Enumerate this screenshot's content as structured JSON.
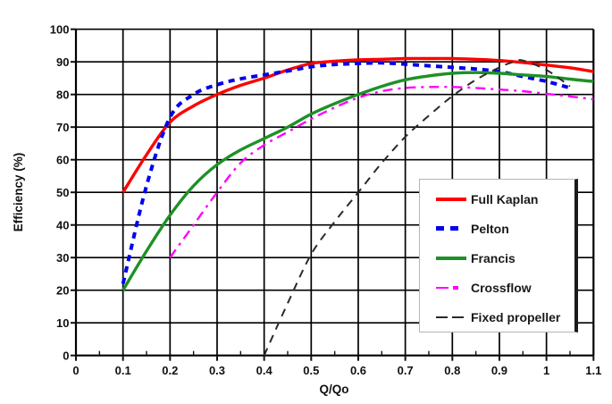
{
  "chart_data": {
    "type": "line",
    "title": "",
    "xlabel": "Q/Qo",
    "ylabel": "Efficiency (%)",
    "xlim": [
      0,
      1.1
    ],
    "ylim": [
      0,
      100
    ],
    "grid": true,
    "grid_color": "#000000",
    "legend_position": "inside lower right",
    "x_ticks": {
      "values": [
        0,
        0.1,
        0.2,
        0.3,
        0.4,
        0.5,
        0.6,
        0.7,
        0.8,
        0.9,
        1,
        1.1
      ],
      "labels": [
        "0",
        "0.1",
        "0.2",
        "0.3",
        "0.4",
        "0.5",
        "0.6",
        "0.7",
        "0.8",
        "0.9",
        "1",
        "1.1"
      ],
      "minor_values": [
        0.05,
        0.15,
        0.25,
        0.35,
        0.45,
        0.55,
        0.65,
        0.75,
        0.85,
        0.95,
        1.05
      ]
    },
    "y_ticks": {
      "values": [
        0,
        10,
        20,
        30,
        40,
        50,
        60,
        70,
        80,
        90,
        100
      ],
      "labels": [
        "0",
        "10",
        "20",
        "30",
        "40",
        "50",
        "60",
        "70",
        "80",
        "90",
        "100"
      ]
    },
    "series": [
      {
        "name": "Full Kaplan",
        "color": "#ff0000",
        "dash": "solid",
        "width": 3.4,
        "x": [
          0.1,
          0.15,
          0.2,
          0.25,
          0.3,
          0.35,
          0.4,
          0.45,
          0.5,
          0.55,
          0.6,
          0.65,
          0.7,
          0.75,
          0.8,
          0.85,
          0.9,
          0.95,
          1,
          1.05,
          1.1
        ],
        "y": [
          50,
          61.5,
          71.5,
          76.5,
          80,
          82.8,
          85,
          87.5,
          89.5,
          90.2,
          90.6,
          90.8,
          91,
          91,
          91,
          90.8,
          90.4,
          89.8,
          89,
          88.2,
          87
        ]
      },
      {
        "name": "Pelton",
        "color": "#0000ee",
        "dash": "square-dot",
        "width": 4,
        "x": [
          0.1,
          0.15,
          0.2,
          0.25,
          0.3,
          0.35,
          0.4,
          0.45,
          0.5,
          0.55,
          0.6,
          0.65,
          0.7,
          0.75,
          0.8,
          0.85,
          0.9,
          0.95,
          1,
          1.05
        ],
        "y": [
          22,
          52,
          73,
          80,
          83,
          84.8,
          86,
          87.2,
          88.5,
          89.2,
          89.5,
          89.7,
          89.3,
          88.8,
          88.3,
          87.8,
          87,
          85.5,
          84,
          82
        ]
      },
      {
        "name": "Francis",
        "color": "#1e9126",
        "dash": "solid",
        "width": 3.4,
        "x": [
          0.1,
          0.15,
          0.2,
          0.25,
          0.3,
          0.35,
          0.4,
          0.45,
          0.5,
          0.55,
          0.6,
          0.65,
          0.7,
          0.75,
          0.8,
          0.85,
          0.9,
          0.95,
          1,
          1.05,
          1.1
        ],
        "y": [
          20,
          32,
          43,
          52,
          58.5,
          63,
          66.5,
          70,
          74,
          77.2,
          80,
          82.5,
          84.5,
          85.7,
          86.5,
          86.7,
          86.5,
          86,
          85.5,
          84.7,
          84
        ]
      },
      {
        "name": "Crossflow",
        "color": "#ff00ff",
        "dash": "dash-dot",
        "width": 2.4,
        "x": [
          0.2,
          0.25,
          0.3,
          0.35,
          0.4,
          0.45,
          0.5,
          0.55,
          0.6,
          0.65,
          0.7,
          0.75,
          0.8,
          0.85,
          0.9,
          0.95,
          1,
          1.05,
          1.1
        ],
        "y": [
          30,
          40,
          50,
          59,
          64.5,
          68.5,
          72.5,
          76,
          79,
          81,
          82,
          82.3,
          82.3,
          82,
          81.5,
          81,
          80.2,
          79.4,
          78.5
        ]
      },
      {
        "name": "Fixed propeller",
        "color": "#2a2a2a",
        "dash": "long-dash",
        "width": 2,
        "x": [
          0.4,
          0.45,
          0.5,
          0.55,
          0.6,
          0.65,
          0.7,
          0.75,
          0.8,
          0.85,
          0.9,
          0.93,
          0.95,
          1,
          1.05
        ],
        "y": [
          0,
          16,
          31,
          41,
          50,
          59,
          67,
          73.5,
          79.5,
          84.5,
          88.3,
          90,
          90.4,
          87.5,
          82.5
        ]
      }
    ]
  }
}
